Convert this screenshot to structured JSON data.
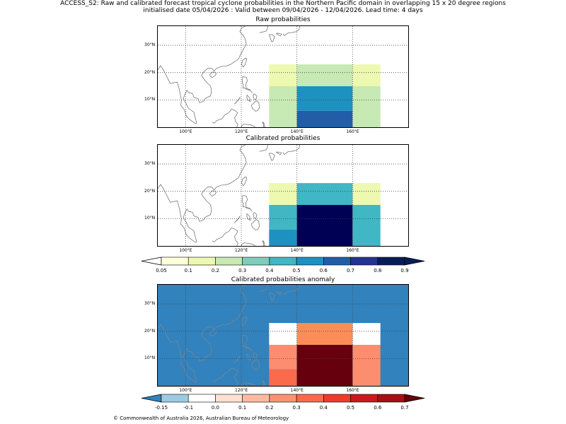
{
  "header": {
    "line1": "ACCESS_S2: Raw and calibrated forecast tropical cyclone probabilities in the Northern Pacific domain in overlapping 15 x 20 degree regions",
    "line2": "initialised date 05/04/2026 :  Valid between 09/04/2026 - 12/04/2026. Lead time: 4 days"
  },
  "panels": [
    {
      "title": "Raw probabilities",
      "regions": [
        {
          "lon": [
            130,
            140
          ],
          "lat": [
            15,
            23
          ],
          "color": "#edf8b1"
        },
        {
          "lon": [
            140,
            160
          ],
          "lat": [
            15,
            23
          ],
          "color": "#c7e9b4"
        },
        {
          "lon": [
            160,
            170
          ],
          "lat": [
            15,
            23
          ],
          "color": "#edf8b1"
        },
        {
          "lon": [
            130,
            140
          ],
          "lat": [
            0,
            15
          ],
          "color": "#c7e9b4"
        },
        {
          "lon": [
            140,
            160
          ],
          "lat": [
            6,
            15
          ],
          "color": "#1d91c0"
        },
        {
          "lon": [
            140,
            160
          ],
          "lat": [
            0,
            6
          ],
          "color": "#225ea8"
        },
        {
          "lon": [
            160,
            170
          ],
          "lat": [
            0,
            15
          ],
          "color": "#c7e9b4"
        }
      ]
    },
    {
      "title": "Calibrated probabilities",
      "regions": [
        {
          "lon": [
            130,
            140
          ],
          "lat": [
            15,
            23
          ],
          "color": "#edf8b1"
        },
        {
          "lon": [
            140,
            160
          ],
          "lat": [
            15,
            23
          ],
          "color": "#41b6c4"
        },
        {
          "lon": [
            160,
            170
          ],
          "lat": [
            15,
            23
          ],
          "color": "#edf8b1"
        },
        {
          "lon": [
            130,
            140
          ],
          "lat": [
            6,
            15
          ],
          "color": "#41b6c4"
        },
        {
          "lon": [
            130,
            140
          ],
          "lat": [
            0,
            6
          ],
          "color": "#1d91c0"
        },
        {
          "lon": [
            140,
            160
          ],
          "lat": [
            0,
            15
          ],
          "color": "#000055"
        },
        {
          "lon": [
            160,
            170
          ],
          "lat": [
            0,
            15
          ],
          "color": "#41b6c4"
        }
      ]
    },
    {
      "title": "Calibrated probabilities anomaly",
      "background": "#3182bd",
      "regions": [
        {
          "lon": [
            130,
            140
          ],
          "lat": [
            15,
            23
          ],
          "color": "#ffffff"
        },
        {
          "lon": [
            140,
            160
          ],
          "lat": [
            15,
            23
          ],
          "color": "#fc8d59"
        },
        {
          "lon": [
            160,
            170
          ],
          "lat": [
            15,
            23
          ],
          "color": "#ffffff"
        },
        {
          "lon": [
            130,
            140
          ],
          "lat": [
            6,
            15
          ],
          "color": "#fc8d6f"
        },
        {
          "lon": [
            130,
            140
          ],
          "lat": [
            0,
            6
          ],
          "color": "#fb6a4a"
        },
        {
          "lon": [
            140,
            160
          ],
          "lat": [
            0,
            15
          ],
          "color": "#67000d"
        },
        {
          "lon": [
            160,
            170
          ],
          "lat": [
            0,
            15
          ],
          "color": "#fc8d6f"
        }
      ]
    }
  ],
  "axes": {
    "lon_range": [
      90,
      180
    ],
    "lat_range": [
      0,
      37
    ],
    "x_ticks": [
      {
        "v": 100,
        "label": "100°E"
      },
      {
        "v": 120,
        "label": "120°E"
      },
      {
        "v": 140,
        "label": "140°E"
      },
      {
        "v": 160,
        "label": "160°E"
      }
    ],
    "y_ticks": [
      {
        "v": 10,
        "label": "10°N"
      },
      {
        "v": 20,
        "label": "20°N"
      },
      {
        "v": 30,
        "label": "30°N"
      }
    ]
  },
  "colorbar1": {
    "labels": [
      "0.05",
      "0.1",
      "0.2",
      "0.3",
      "0.4",
      "0.5",
      "0.6",
      "0.7",
      "0.8",
      "0.9"
    ],
    "under": "#ffffff",
    "over": "#081d58",
    "colors": [
      "#ffffd9",
      "#edf8b1",
      "#c7e9b4",
      "#7fcdbb",
      "#41b6c4",
      "#1d91c0",
      "#225ea8",
      "#253494",
      "#081d58"
    ]
  },
  "colorbar2": {
    "labels": [
      "-0.15",
      "-0.1",
      "0.0",
      "0.1",
      "0.2",
      "0.3",
      "0.4",
      "0.5",
      "0.6",
      "0.7"
    ],
    "under": "#3182bd",
    "over": "#67000d",
    "colors": [
      "#9ecae1",
      "#ffffff",
      "#fee0d2",
      "#fcbba1",
      "#fc9272",
      "#fb6a4a",
      "#ef3b2c",
      "#cb181d",
      "#a50f15"
    ]
  },
  "footer": "© Commonwealth of Australia 2026, Australian Bureau of Meteorology"
}
